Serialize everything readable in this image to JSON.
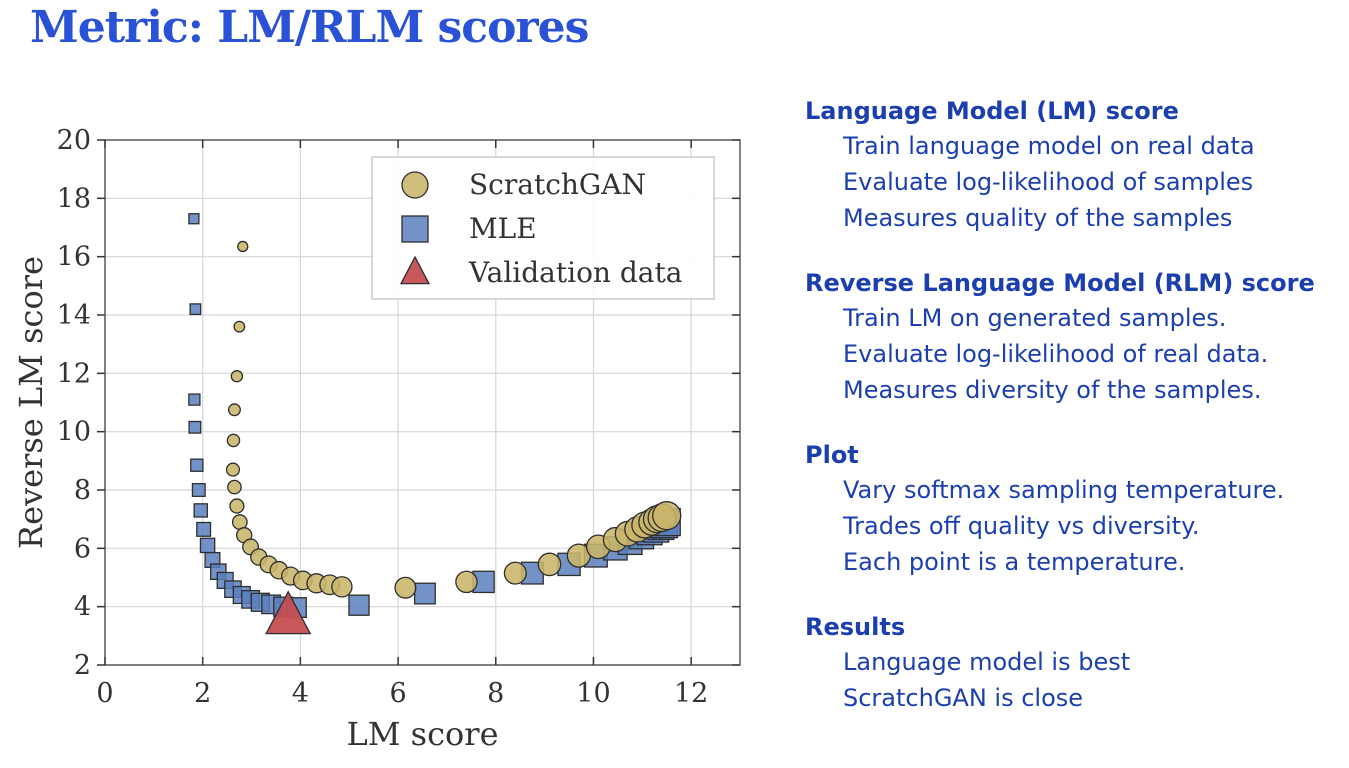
{
  "slide": {
    "title": "Metric: LM/RLM scores"
  },
  "chart_data": {
    "type": "scatter",
    "xlabel": "LM score",
    "ylabel": "Reverse LM score",
    "xlim": [
      0,
      13
    ],
    "ylim": [
      2,
      20
    ],
    "xticks": [
      0,
      2,
      4,
      6,
      8,
      10,
      12
    ],
    "yticks": [
      2,
      4,
      6,
      8,
      10,
      12,
      14,
      16,
      18,
      20
    ],
    "grid": true,
    "legend_position": "top-right",
    "series": [
      {
        "name": "ScratchGAN",
        "marker": "circle",
        "color": "#c9b66a",
        "x": [
          2.82,
          2.75,
          2.7,
          2.65,
          2.63,
          2.62,
          2.65,
          2.7,
          2.76,
          2.85,
          2.98,
          3.15,
          3.35,
          3.56,
          3.8,
          4.05,
          4.33,
          4.6,
          4.85,
          6.15,
          7.4,
          8.4,
          9.1,
          9.7,
          10.1,
          10.45,
          10.7,
          10.9,
          11.05,
          11.2,
          11.3,
          11.4,
          11.5
        ],
        "y": [
          16.35,
          13.6,
          11.9,
          10.75,
          9.7,
          8.7,
          8.1,
          7.45,
          6.9,
          6.45,
          6.05,
          5.7,
          5.45,
          5.25,
          5.05,
          4.9,
          4.8,
          4.75,
          4.68,
          4.65,
          4.85,
          5.15,
          5.45,
          5.75,
          6.05,
          6.3,
          6.5,
          6.65,
          6.8,
          6.9,
          7.0,
          7.05,
          7.12
        ]
      },
      {
        "name": "MLE",
        "marker": "square",
        "color": "#5a7fbd",
        "x": [
          1.82,
          1.85,
          1.83,
          1.84,
          1.88,
          1.92,
          1.96,
          2.02,
          2.1,
          2.2,
          2.32,
          2.46,
          2.62,
          2.8,
          2.98,
          3.18,
          3.4,
          3.65,
          3.92,
          5.2,
          6.55,
          7.75,
          8.75,
          9.5,
          10.05,
          10.45,
          10.75,
          10.98,
          11.15,
          11.28,
          11.38,
          11.45,
          11.5
        ],
        "y": [
          17.3,
          14.2,
          11.1,
          10.15,
          8.85,
          8.0,
          7.3,
          6.65,
          6.1,
          5.6,
          5.2,
          4.9,
          4.6,
          4.4,
          4.25,
          4.15,
          4.08,
          4.0,
          3.97,
          4.05,
          4.45,
          4.85,
          5.15,
          5.45,
          5.75,
          6.0,
          6.2,
          6.4,
          6.55,
          6.65,
          6.75,
          6.82,
          6.9
        ]
      },
      {
        "name": "Validation data",
        "marker": "triangle",
        "color": "#c44e52",
        "x": [
          3.75
        ],
        "y": [
          3.65
        ]
      }
    ]
  },
  "notes": [
    {
      "heading": "Language Model (LM) score",
      "lines": [
        "Train language model on real data",
        "Evaluate log-likelihood of samples",
        "Measures quality of the samples"
      ]
    },
    {
      "heading": "Reverse Language Model (RLM) score",
      "lines": [
        "Train LM on generated samples.",
        "Evaluate log-likelihood of real data.",
        "Measures diversity of the samples."
      ]
    },
    {
      "heading": "Plot",
      "lines": [
        "Vary softmax sampling temperature.",
        "Trades off quality vs diversity.",
        "Each point is a temperature."
      ]
    },
    {
      "heading": "Results",
      "lines": [
        "Language model is best",
        "ScratchGAN is close"
      ]
    }
  ]
}
